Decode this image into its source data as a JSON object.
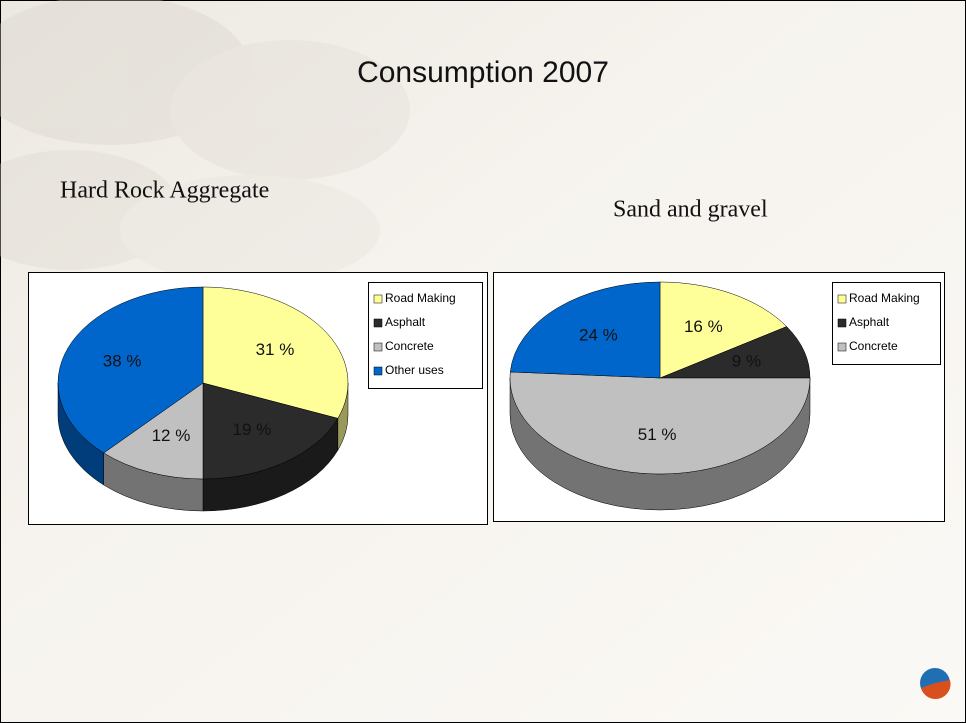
{
  "title": "Consumption 2007",
  "chart_data": [
    {
      "type": "pie",
      "title": "Hard Rock Aggregate",
      "categories": [
        "Road Making",
        "Asphalt",
        "Concrete",
        "Other uses"
      ],
      "values": [
        31,
        19,
        12,
        38
      ],
      "value_labels": [
        "31 %",
        "19 %",
        "12 %",
        "38 %"
      ],
      "colors": [
        "#ffff99",
        "#2b2b2b",
        "#c0c0c0",
        "#0066cc"
      ],
      "legend": "right"
    },
    {
      "type": "pie",
      "title": "Sand and gravel",
      "categories": [
        "Road Making",
        "Asphalt",
        "Concrete",
        null
      ],
      "values": [
        16,
        9,
        51,
        24
      ],
      "value_labels": [
        "16 %",
        "9 %",
        "51 %",
        "24 %"
      ],
      "colors": [
        "#ffff99",
        "#2b2b2b",
        "#c0c0c0",
        "#0066cc"
      ],
      "legend": "right"
    }
  ]
}
